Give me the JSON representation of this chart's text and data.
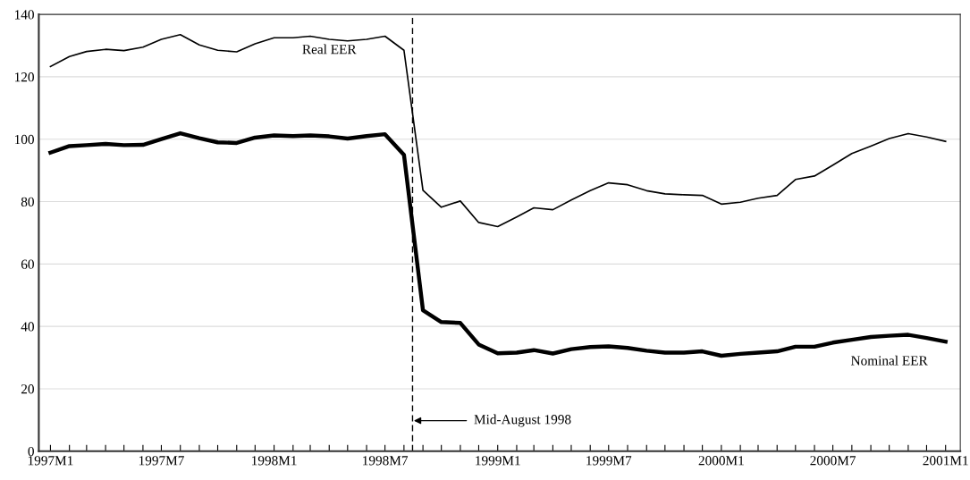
{
  "chart_data": {
    "type": "line",
    "x": [
      "1997-01",
      "1997-02",
      "1997-03",
      "1997-04",
      "1997-05",
      "1997-06",
      "1997-07",
      "1997-08",
      "1997-09",
      "1997-10",
      "1997-11",
      "1997-12",
      "1998-01",
      "1998-02",
      "1998-03",
      "1998-04",
      "1998-05",
      "1998-06",
      "1998-07",
      "1998-08",
      "1998-09",
      "1998-10",
      "1998-11",
      "1998-12",
      "1999-01",
      "1999-02",
      "1999-03",
      "1999-04",
      "1999-05",
      "1999-06",
      "1999-07",
      "1999-08",
      "1999-09",
      "1999-10",
      "1999-11",
      "1999-12",
      "2000-01",
      "2000-02",
      "2000-03",
      "2000-04",
      "2000-05",
      "2000-06",
      "2000-07",
      "2000-08",
      "2000-09",
      "2000-10",
      "2000-11",
      "2000-12",
      "2001-01"
    ],
    "series": [
      {
        "name": "Real EER",
        "color": "#000000",
        "values": [
          123.3,
          126.5,
          128.1,
          128.8,
          128.4,
          129.5,
          132.0,
          133.5,
          130.2,
          128.5,
          128.0,
          130.6,
          132.5,
          132.5,
          133.0,
          132.0,
          131.5,
          132.0,
          133.0,
          128.5,
          83.6,
          78.2,
          80.2,
          73.3,
          72.0,
          75.1,
          78.0,
          77.4,
          80.5,
          83.5,
          86.0,
          85.4,
          83.5,
          82.5,
          82.2,
          82.0,
          79.2,
          79.8,
          81.1,
          82.0,
          87.1,
          88.2,
          91.7,
          95.4,
          97.8,
          100.2,
          101.8,
          100.7,
          99.3
        ]
      },
      {
        "name": "Nominal EER",
        "color": "#000000",
        "values": [
          95.7,
          97.8,
          98.1,
          98.5,
          98.1,
          98.2,
          100.0,
          101.9,
          100.3,
          99.0,
          98.8,
          100.5,
          101.2,
          101.0,
          101.2,
          100.9,
          100.2,
          101.0,
          101.6,
          95.0,
          45.2,
          41.4,
          41.1,
          34.2,
          31.4,
          31.6,
          32.4,
          31.3,
          32.7,
          33.4,
          33.6,
          33.1,
          32.2,
          31.6,
          31.6,
          32.0,
          30.6,
          31.2,
          31.6,
          32.0,
          33.5,
          33.5,
          34.8,
          35.7,
          36.6,
          37.0,
          37.3,
          36.3,
          35.1
        ]
      }
    ],
    "xlim": [
      "1996-12-13",
      "2001-01-25"
    ],
    "xticks": [
      {
        "value": "1997-01",
        "label": "1997M1"
      },
      {
        "value": "1997-02",
        "label": null
      },
      {
        "value": "1997-03",
        "label": null
      },
      {
        "value": "1997-04",
        "label": null
      },
      {
        "value": "1997-05",
        "label": null
      },
      {
        "value": "1997-06",
        "label": null
      },
      {
        "value": "1997-07",
        "label": "1997M7"
      },
      {
        "value": "1997-08",
        "label": null
      },
      {
        "value": "1997-09",
        "label": null
      },
      {
        "value": "1997-10",
        "label": null
      },
      {
        "value": "1997-11",
        "label": null
      },
      {
        "value": "1997-12",
        "label": null
      },
      {
        "value": "1998-01",
        "label": "1998M1"
      },
      {
        "value": "1998-02",
        "label": null
      },
      {
        "value": "1998-03",
        "label": null
      },
      {
        "value": "1998-04",
        "label": null
      },
      {
        "value": "1998-05",
        "label": null
      },
      {
        "value": "1998-06",
        "label": null
      },
      {
        "value": "1998-07",
        "label": "1998M7"
      },
      {
        "value": "1998-08",
        "label": null
      },
      {
        "value": "1998-09",
        "label": null
      },
      {
        "value": "1998-10",
        "label": null
      },
      {
        "value": "1998-11",
        "label": null
      },
      {
        "value": "1998-12",
        "label": null
      },
      {
        "value": "1999-01",
        "label": "1999M1"
      },
      {
        "value": "1999-02",
        "label": null
      },
      {
        "value": "1999-03",
        "label": null
      },
      {
        "value": "1999-04",
        "label": null
      },
      {
        "value": "1999-05",
        "label": null
      },
      {
        "value": "1999-06",
        "label": null
      },
      {
        "value": "1999-07",
        "label": "1999M7"
      },
      {
        "value": "1999-08",
        "label": null
      },
      {
        "value": "1999-09",
        "label": null
      },
      {
        "value": "1999-10",
        "label": null
      },
      {
        "value": "1999-11",
        "label": null
      },
      {
        "value": "1999-12",
        "label": null
      },
      {
        "value": "2000-01",
        "label": "2000M1"
      },
      {
        "value": "2000-02",
        "label": null
      },
      {
        "value": "2000-03",
        "label": null
      },
      {
        "value": "2000-04",
        "label": null
      },
      {
        "value": "2000-05",
        "label": null
      },
      {
        "value": "2000-06",
        "label": null
      },
      {
        "value": "2000-07",
        "label": "2000M7"
      },
      {
        "value": "2000-08",
        "label": null
      },
      {
        "value": "2000-09",
        "label": null
      },
      {
        "value": "2000-10",
        "label": null
      },
      {
        "value": "2000-11",
        "label": null
      },
      {
        "value": "2000-12",
        "label": null
      },
      {
        "value": "2001-01",
        "label": "2001M1"
      }
    ],
    "ylim": [
      0,
      140
    ],
    "yticks": [
      0,
      20,
      40,
      60,
      80,
      100,
      120,
      140
    ],
    "grid": "y",
    "ref_lines": [
      {
        "axis": "x",
        "value": "1998-08-15",
        "label": "Mid-August 1998",
        "color": "#000000",
        "line_style": "dashed"
      }
    ]
  }
}
